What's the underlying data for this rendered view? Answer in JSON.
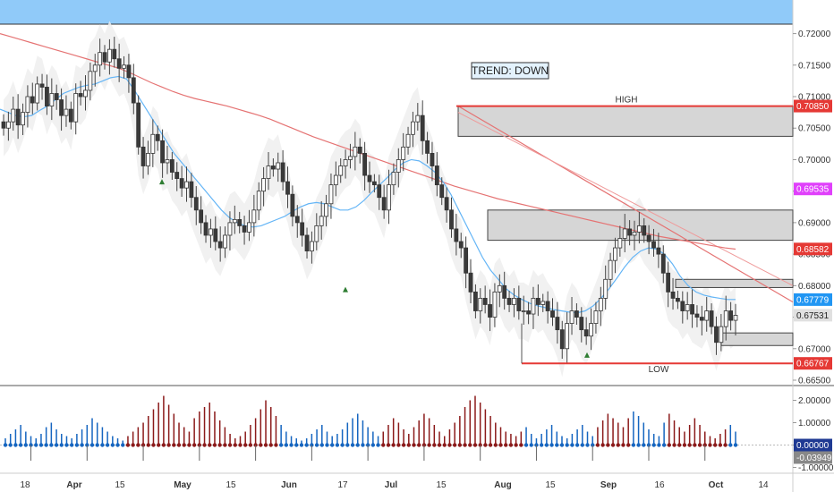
{
  "chart_data": [
    {
      "type": "candlestick",
      "instrument_note": "",
      "y_range": [
        0.665,
        0.7215
      ],
      "y_ticks": [
        "0.72000",
        "0.71500",
        "0.71000",
        "0.70500",
        "0.70000",
        "0.69500",
        "0.69000",
        "0.68500",
        "0.68000",
        "0.67500",
        "0.67000",
        "0.66500"
      ],
      "y_tick_values": [
        0.72,
        0.715,
        0.71,
        0.705,
        0.7,
        0.695,
        0.69,
        0.685,
        0.68,
        0.675,
        0.67,
        0.665
      ],
      "x_ticks": [
        {
          "label": "18",
          "bold": false
        },
        {
          "label": "Apr",
          "bold": true
        },
        {
          "label": "15",
          "bold": false
        },
        {
          "label": "May",
          "bold": true
        },
        {
          "label": "15",
          "bold": false
        },
        {
          "label": "Jun",
          "bold": true
        },
        {
          "label": "17",
          "bold": false
        },
        {
          "label": "Jul",
          "bold": true
        },
        {
          "label": "15",
          "bold": false
        },
        {
          "label": "Aug",
          "bold": true
        },
        {
          "label": "15",
          "bold": false
        },
        {
          "label": "Sep",
          "bold": true
        },
        {
          "label": "16",
          "bold": false
        },
        {
          "label": "Oct",
          "bold": true
        },
        {
          "label": "14",
          "bold": false
        }
      ],
      "trend_label": "TREND: DOWN",
      "high_label": "HIGH",
      "low_label": "LOW",
      "high_level": 0.7085,
      "low_level": 0.66767,
      "price_badges": [
        {
          "text": "0.70850",
          "value": 0.7085,
          "color": "#e53935"
        },
        {
          "text": "0.69535",
          "value": 0.69535,
          "color": "#e040fb"
        },
        {
          "text": "0.68582",
          "value": 0.68582,
          "color": "#e53935"
        },
        {
          "text": "0.67779",
          "value": 0.67779,
          "color": "#2196f3"
        },
        {
          "text": "0.67531",
          "value": 0.67531,
          "color": "#e0e0e0"
        },
        {
          "text": "0.66767",
          "value": 0.66767,
          "color": "#e53935"
        }
      ],
      "supply_zones": [
        {
          "from": 0.7085,
          "to": 0.7037
        },
        {
          "from": 0.692,
          "to": 0.6872
        },
        {
          "from": 0.681,
          "to": 0.6797
        },
        {
          "from": 0.6725,
          "to": 0.6705
        }
      ],
      "closes": [
        0.705,
        0.706,
        0.708,
        0.7055,
        0.7075,
        0.71,
        0.709,
        0.712,
        0.7115,
        0.7085,
        0.7105,
        0.7095,
        0.707,
        0.708,
        0.706,
        0.7105,
        0.71,
        0.711,
        0.714,
        0.715,
        0.717,
        0.7155,
        0.7175,
        0.716,
        0.7145,
        0.715,
        0.713,
        0.709,
        0.702,
        0.699,
        0.701,
        0.704,
        0.703,
        0.6995,
        0.7,
        0.698,
        0.697,
        0.6955,
        0.6965,
        0.694,
        0.692,
        0.69,
        0.688,
        0.689,
        0.687,
        0.686,
        0.688,
        0.69,
        0.6905,
        0.6895,
        0.6885,
        0.69,
        0.692,
        0.695,
        0.697,
        0.699,
        0.6985,
        0.6995,
        0.6965,
        0.6945,
        0.691,
        0.69,
        0.688,
        0.6855,
        0.687,
        0.6895,
        0.691,
        0.693,
        0.696,
        0.6975,
        0.699,
        0.7,
        0.7005,
        0.702,
        0.701,
        0.6975,
        0.6965,
        0.696,
        0.694,
        0.692,
        0.696,
        0.698,
        0.7,
        0.702,
        0.704,
        0.706,
        0.707,
        0.703,
        0.701,
        0.699,
        0.696,
        0.694,
        0.692,
        0.689,
        0.687,
        0.686,
        0.682,
        0.679,
        0.676,
        0.678,
        0.677,
        0.675,
        0.679,
        0.68,
        0.678,
        0.677,
        0.678,
        0.676,
        0.676,
        0.6755,
        0.678,
        0.677,
        0.6775,
        0.676,
        0.675,
        0.673,
        0.67,
        0.674,
        0.676,
        0.675,
        0.673,
        0.672,
        0.674,
        0.676,
        0.678,
        0.681,
        0.684,
        0.686,
        0.6875,
        0.689,
        0.688,
        0.6885,
        0.6895,
        0.688,
        0.687,
        0.686,
        0.685,
        0.682,
        0.679,
        0.678,
        0.6775,
        0.676,
        0.677,
        0.6755,
        0.675,
        0.6745,
        0.676,
        0.6735,
        0.671,
        0.6735,
        0.676,
        0.6745,
        0.6753
      ],
      "ema_fast": [
        0.708,
        0.7075,
        0.707,
        0.7068,
        0.707,
        0.7078,
        0.7085,
        0.7095,
        0.7105,
        0.711,
        0.7115,
        0.7118,
        0.712,
        0.7125,
        0.713,
        0.7132,
        0.7128,
        0.711,
        0.709,
        0.707,
        0.705,
        0.703,
        0.701,
        0.6995,
        0.698,
        0.6965,
        0.695,
        0.6935,
        0.692,
        0.6908,
        0.69,
        0.6895,
        0.6893,
        0.6895,
        0.69,
        0.6905,
        0.691,
        0.6918,
        0.6925,
        0.693,
        0.6932,
        0.693,
        0.6925,
        0.692,
        0.692,
        0.6925,
        0.6935,
        0.6948,
        0.696,
        0.6972,
        0.6985,
        0.6995,
        0.7,
        0.6998,
        0.699,
        0.698,
        0.6965,
        0.6945,
        0.692,
        0.6895,
        0.687,
        0.6845,
        0.6825,
        0.681,
        0.6795,
        0.6785,
        0.6778,
        0.6772,
        0.6768,
        0.6765,
        0.6762,
        0.676,
        0.6758,
        0.6757,
        0.676,
        0.6768,
        0.678,
        0.6795,
        0.6812,
        0.683,
        0.6845,
        0.6855,
        0.686,
        0.6858,
        0.685,
        0.6835,
        0.6815,
        0.68,
        0.679,
        0.6785,
        0.6782,
        0.678,
        0.6778,
        0.6778
      ],
      "ema_slow": [
        0.72,
        0.7195,
        0.719,
        0.7185,
        0.718,
        0.7175,
        0.717,
        0.7165,
        0.716,
        0.7155,
        0.715,
        0.7145,
        0.7138,
        0.713,
        0.7122,
        0.7115,
        0.7108,
        0.7102,
        0.7097,
        0.7093,
        0.7089,
        0.7085,
        0.708,
        0.7075,
        0.707,
        0.7064,
        0.7057,
        0.705,
        0.7043,
        0.7036,
        0.703,
        0.7024,
        0.7018,
        0.7012,
        0.7006,
        0.7,
        0.6994,
        0.6988,
        0.6982,
        0.6976,
        0.697,
        0.6964,
        0.6958,
        0.6953,
        0.6948,
        0.6943,
        0.6938,
        0.6934,
        0.693,
        0.6926,
        0.6922,
        0.6918,
        0.6914,
        0.691,
        0.6906,
        0.6902,
        0.6898,
        0.6894,
        0.689,
        0.6886,
        0.6882,
        0.6878,
        0.6875,
        0.6872,
        0.6869,
        0.6866,
        0.6863,
        0.686,
        0.6858
      ]
    },
    {
      "type": "histogram",
      "y_range": [
        -1.1,
        2.5
      ],
      "y_ticks": [
        "2.00000",
        "1.00000",
        "0.00000",
        "-1.00000"
      ],
      "y_tick_values": [
        2,
        1,
        0,
        -1
      ],
      "indicator_text": "",
      "value_badges": [
        {
          "text": "0.00000",
          "value": 0.0,
          "color": "#1f3a93"
        },
        {
          "text": "-0.03949",
          "value": -0.03949,
          "color": "#888888"
        }
      ],
      "bars": [
        0.3,
        0.5,
        0.7,
        0.9,
        0.6,
        0.4,
        0.3,
        0.5,
        0.8,
        1.0,
        0.7,
        0.5,
        0.4,
        0.3,
        0.5,
        0.7,
        0.9,
        1.2,
        1.0,
        0.8,
        0.6,
        0.4,
        0.3,
        0.2,
        0.4,
        0.6,
        0.8,
        1.0,
        1.3,
        1.6,
        1.9,
        2.2,
        1.8,
        1.4,
        1.0,
        0.8,
        0.6,
        1.2,
        1.5,
        1.7,
        1.9,
        1.5,
        1.1,
        0.8,
        0.5,
        0.3,
        0.4,
        0.6,
        0.9,
        1.2,
        1.6,
        2.0,
        1.7,
        1.3,
        0.9,
        0.6,
        0.4,
        0.3,
        0.2,
        0.3,
        0.5,
        0.7,
        0.9,
        0.6,
        0.4,
        0.5,
        0.7,
        1.0,
        1.2,
        1.4,
        1.1,
        0.8,
        0.6,
        0.4,
        0.6,
        0.9,
        1.2,
        1.0,
        0.7,
        0.5,
        0.8,
        1.1,
        1.4,
        1.2,
        0.9,
        0.6,
        0.4,
        0.7,
        1.0,
        1.3,
        1.7,
        2.0,
        2.2,
        1.9,
        1.6,
        1.3,
        1.0,
        0.8,
        0.6,
        0.5,
        0.4,
        0.6,
        0.8,
        0.5,
        0.3,
        0.5,
        0.7,
        0.9,
        0.6,
        0.4,
        0.3,
        0.5,
        0.7,
        0.9,
        0.6,
        0.4,
        0.8,
        1.1,
        1.4,
        1.2,
        1.0,
        0.8,
        1.2,
        1.5,
        1.3,
        1.0,
        0.7,
        0.5,
        0.4,
        1.0,
        1.4,
        1.1,
        0.8,
        0.6,
        0.9,
        1.2,
        0.9,
        0.6,
        0.4,
        0.3,
        0.5,
        0.7,
        0.9,
        0.6
      ],
      "bar_colors": [
        "b",
        "b",
        "b",
        "b",
        "b",
        "b",
        "b",
        "b",
        "b",
        "b",
        "b",
        "b",
        "b",
        "b",
        "b",
        "b",
        "b",
        "b",
        "b",
        "b",
        "b",
        "b",
        "b",
        "b",
        "r",
        "r",
        "r",
        "r",
        "r",
        "r",
        "r",
        "r",
        "r",
        "r",
        "r",
        "r",
        "r",
        "r",
        "r",
        "r",
        "r",
        "r",
        "r",
        "r",
        "r",
        "r",
        "r",
        "r",
        "r",
        "r",
        "r",
        "r",
        "r",
        "r",
        "b",
        "b",
        "b",
        "b",
        "b",
        "b",
        "b",
        "b",
        "b",
        "b",
        "b",
        "b",
        "b",
        "b",
        "b",
        "b",
        "b",
        "b",
        "b",
        "b",
        "r",
        "r",
        "r",
        "r",
        "r",
        "r",
        "r",
        "r",
        "r",
        "r",
        "r",
        "r",
        "r",
        "r",
        "r",
        "r",
        "r",
        "r",
        "r",
        "r",
        "r",
        "r",
        "r",
        "r",
        "r",
        "r",
        "r",
        "r",
        "b",
        "b",
        "b",
        "b",
        "b",
        "b",
        "b",
        "b",
        "b",
        "b",
        "b",
        "b",
        "b",
        "b",
        "r",
        "r",
        "r",
        "r",
        "r",
        "r",
        "r",
        "b",
        "b",
        "b",
        "b",
        "b",
        "b",
        "b",
        "r",
        "r",
        "r",
        "r",
        "r",
        "r",
        "r",
        "r",
        "r",
        "r",
        "r",
        "r",
        "b",
        "b"
      ]
    }
  ]
}
